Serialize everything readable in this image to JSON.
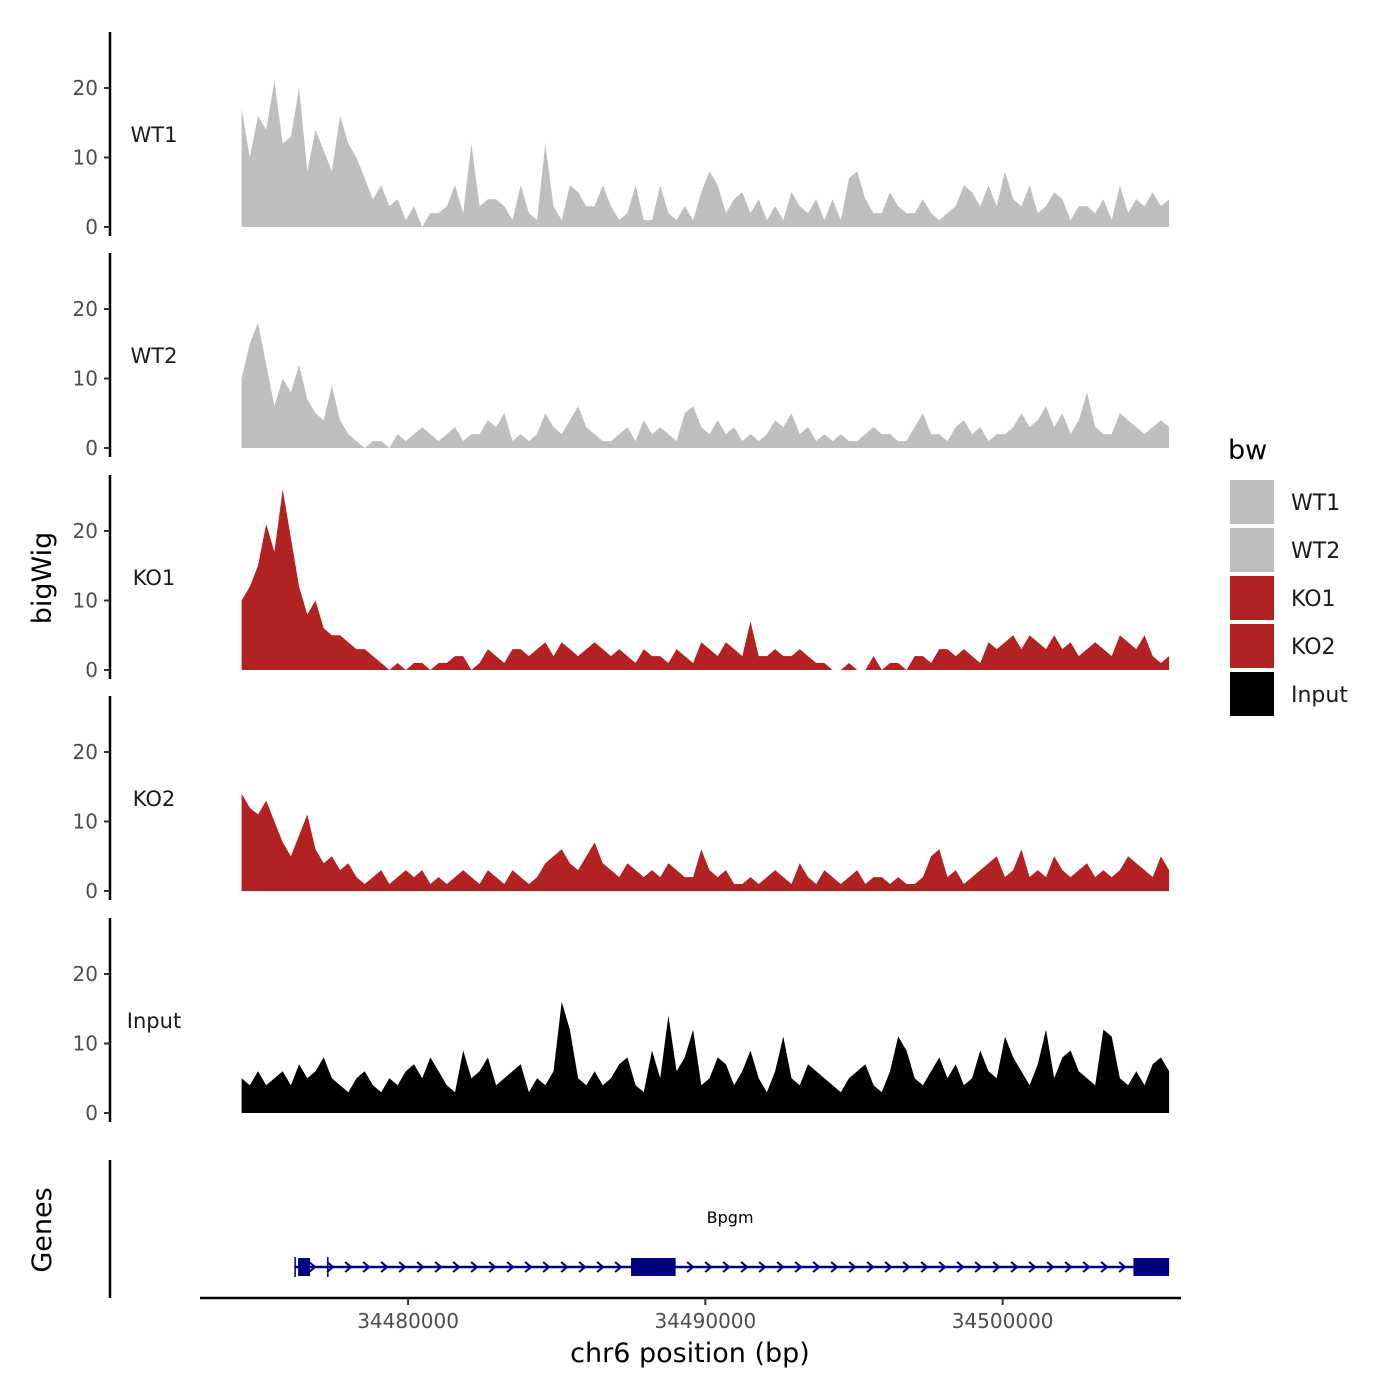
{
  "chart_data": {
    "type": "area",
    "title": "",
    "ylabel": "bigWig",
    "genes_label": "Genes",
    "xlabel": "chr6 position (bp)",
    "xlim": [
      34473000,
      34506000
    ],
    "data_range": [
      34474400,
      34505600
    ],
    "ylim": [
      0,
      28
    ],
    "y_ticks": [
      {
        "value": 0,
        "label": "0"
      },
      {
        "value": 10,
        "label": "10"
      },
      {
        "value": 20,
        "label": "20"
      }
    ],
    "x_ticks": [
      {
        "value": 34480000,
        "label": "34480000"
      },
      {
        "value": 34490000,
        "label": "34490000"
      },
      {
        "value": 34500000,
        "label": "34500000"
      }
    ],
    "tracks": [
      {
        "name": "WT1",
        "color": "#bebebe",
        "values": [
          17,
          10,
          16,
          14,
          21,
          12,
          13,
          20,
          8,
          14,
          11,
          8,
          16,
          12,
          10,
          7,
          4,
          6,
          3,
          4,
          1,
          3,
          0,
          2,
          2,
          3,
          6,
          2,
          12,
          3,
          4,
          4,
          3,
          1,
          6,
          2,
          1,
          12,
          3,
          1,
          6,
          5,
          3,
          3,
          6,
          3,
          1,
          2,
          6,
          1,
          1,
          6,
          2,
          1,
          3,
          1,
          5,
          8,
          6,
          2,
          4,
          5,
          2,
          4,
          1,
          3,
          1,
          5,
          3,
          2,
          4,
          1,
          4,
          1,
          7,
          8,
          4,
          2,
          2,
          5,
          3,
          2,
          2,
          4,
          2,
          1,
          2,
          3,
          6,
          5,
          3,
          6,
          3,
          8,
          4,
          3,
          6,
          2,
          3,
          5,
          4,
          1,
          3,
          3,
          2,
          4,
          1,
          6,
          2,
          4,
          3,
          5,
          3,
          4
        ]
      },
      {
        "name": "WT2",
        "color": "#bebebe",
        "values": [
          10,
          15,
          18,
          12,
          6,
          10,
          8,
          12,
          7,
          5,
          4,
          9,
          4,
          2,
          1,
          0,
          1,
          1,
          0,
          2,
          1,
          2,
          3,
          2,
          1,
          2,
          3,
          1,
          2,
          2,
          4,
          3,
          5,
          1,
          2,
          1,
          2,
          5,
          3,
          2,
          4,
          6,
          3,
          2,
          1,
          1,
          2,
          3,
          1,
          4,
          2,
          3,
          2,
          1,
          5,
          6,
          3,
          2,
          4,
          2,
          3,
          1,
          2,
          1,
          2,
          4,
          3,
          5,
          2,
          3,
          1,
          2,
          1,
          2,
          1,
          1,
          2,
          3,
          2,
          2,
          1,
          1,
          3,
          5,
          2,
          2,
          1,
          3,
          4,
          2,
          3,
          1,
          2,
          2,
          3,
          5,
          3,
          4,
          6,
          3,
          5,
          2,
          4,
          8,
          3,
          2,
          2,
          5,
          4,
          3,
          2,
          3,
          4,
          3
        ]
      },
      {
        "name": "KO1",
        "color": "#b22222",
        "values": [
          10,
          12,
          15,
          21,
          17,
          26,
          19,
          12,
          8,
          10,
          6,
          5,
          5,
          4,
          3,
          3,
          2,
          1,
          0,
          1,
          0,
          1,
          1,
          0,
          1,
          1,
          2,
          2,
          0,
          1,
          3,
          2,
          1,
          3,
          3,
          2,
          3,
          4,
          2,
          4,
          3,
          2,
          3,
          4,
          3,
          2,
          3,
          2,
          1,
          3,
          2,
          2,
          1,
          3,
          2,
          1,
          4,
          3,
          2,
          4,
          3,
          2,
          7,
          2,
          2,
          3,
          2,
          2,
          3,
          2,
          1,
          1,
          0,
          0,
          1,
          0,
          0,
          2,
          0,
          1,
          1,
          0,
          2,
          2,
          1,
          3,
          3,
          2,
          3,
          2,
          1,
          4,
          3,
          4,
          5,
          3,
          5,
          4,
          3,
          5,
          3,
          4,
          2,
          3,
          4,
          3,
          2,
          5,
          4,
          3,
          5,
          2,
          1,
          2
        ]
      },
      {
        "name": "KO2",
        "color": "#b22222",
        "values": [
          14,
          12,
          11,
          13,
          10,
          7,
          5,
          8,
          11,
          6,
          4,
          5,
          3,
          4,
          2,
          1,
          2,
          3,
          1,
          2,
          3,
          2,
          3,
          1,
          2,
          1,
          2,
          3,
          2,
          1,
          3,
          2,
          1,
          3,
          2,
          1,
          2,
          4,
          5,
          6,
          4,
          3,
          5,
          7,
          4,
          3,
          2,
          4,
          3,
          2,
          3,
          2,
          4,
          3,
          2,
          2,
          6,
          3,
          2,
          3,
          1,
          1,
          2,
          1,
          2,
          3,
          2,
          1,
          4,
          2,
          1,
          3,
          2,
          1,
          2,
          3,
          1,
          2,
          2,
          1,
          2,
          1,
          1,
          2,
          5,
          6,
          2,
          3,
          1,
          2,
          3,
          4,
          5,
          2,
          3,
          6,
          2,
          3,
          2,
          5,
          3,
          2,
          3,
          4,
          2,
          3,
          2,
          3,
          5,
          4,
          3,
          2,
          5,
          3
        ]
      },
      {
        "name": "Input",
        "color": "#000000",
        "values": [
          5,
          4,
          6,
          4,
          5,
          6,
          4,
          7,
          5,
          6,
          8,
          5,
          4,
          3,
          5,
          6,
          4,
          3,
          5,
          4,
          6,
          7,
          5,
          8,
          6,
          4,
          3,
          9,
          5,
          6,
          8,
          4,
          5,
          6,
          7,
          3,
          5,
          4,
          6,
          16,
          12,
          5,
          4,
          6,
          4,
          5,
          7,
          8,
          4,
          3,
          9,
          5,
          14,
          6,
          8,
          12,
          4,
          5,
          8,
          7,
          4,
          6,
          9,
          5,
          3,
          6,
          11,
          5,
          4,
          7,
          6,
          5,
          4,
          3,
          5,
          6,
          7,
          4,
          3,
          6,
          11,
          9,
          5,
          4,
          6,
          8,
          5,
          7,
          4,
          5,
          9,
          6,
          5,
          11,
          8,
          6,
          4,
          7,
          12,
          5,
          8,
          9,
          6,
          5,
          4,
          12,
          11,
          5,
          4,
          6,
          4,
          7,
          8,
          6
        ]
      }
    ],
    "legend": {
      "title": "bw",
      "position": "right",
      "entries": [
        {
          "label": "WT1",
          "color": "#bebebe"
        },
        {
          "label": "WT2",
          "color": "#bebebe"
        },
        {
          "label": "KO1",
          "color": "#b22222"
        },
        {
          "label": "KO2",
          "color": "#b22222"
        },
        {
          "label": "Input",
          "color": "#000000"
        }
      ]
    },
    "gene": {
      "name": "Bpgm",
      "color": "#000080",
      "start": 34476200,
      "end": 34505600,
      "thick_blocks": [
        [
          34476300,
          34476700
        ],
        [
          34487500,
          34489000
        ],
        [
          34504400,
          34505600
        ]
      ],
      "marker_positions": [
        34476200,
        34477300
      ]
    }
  }
}
